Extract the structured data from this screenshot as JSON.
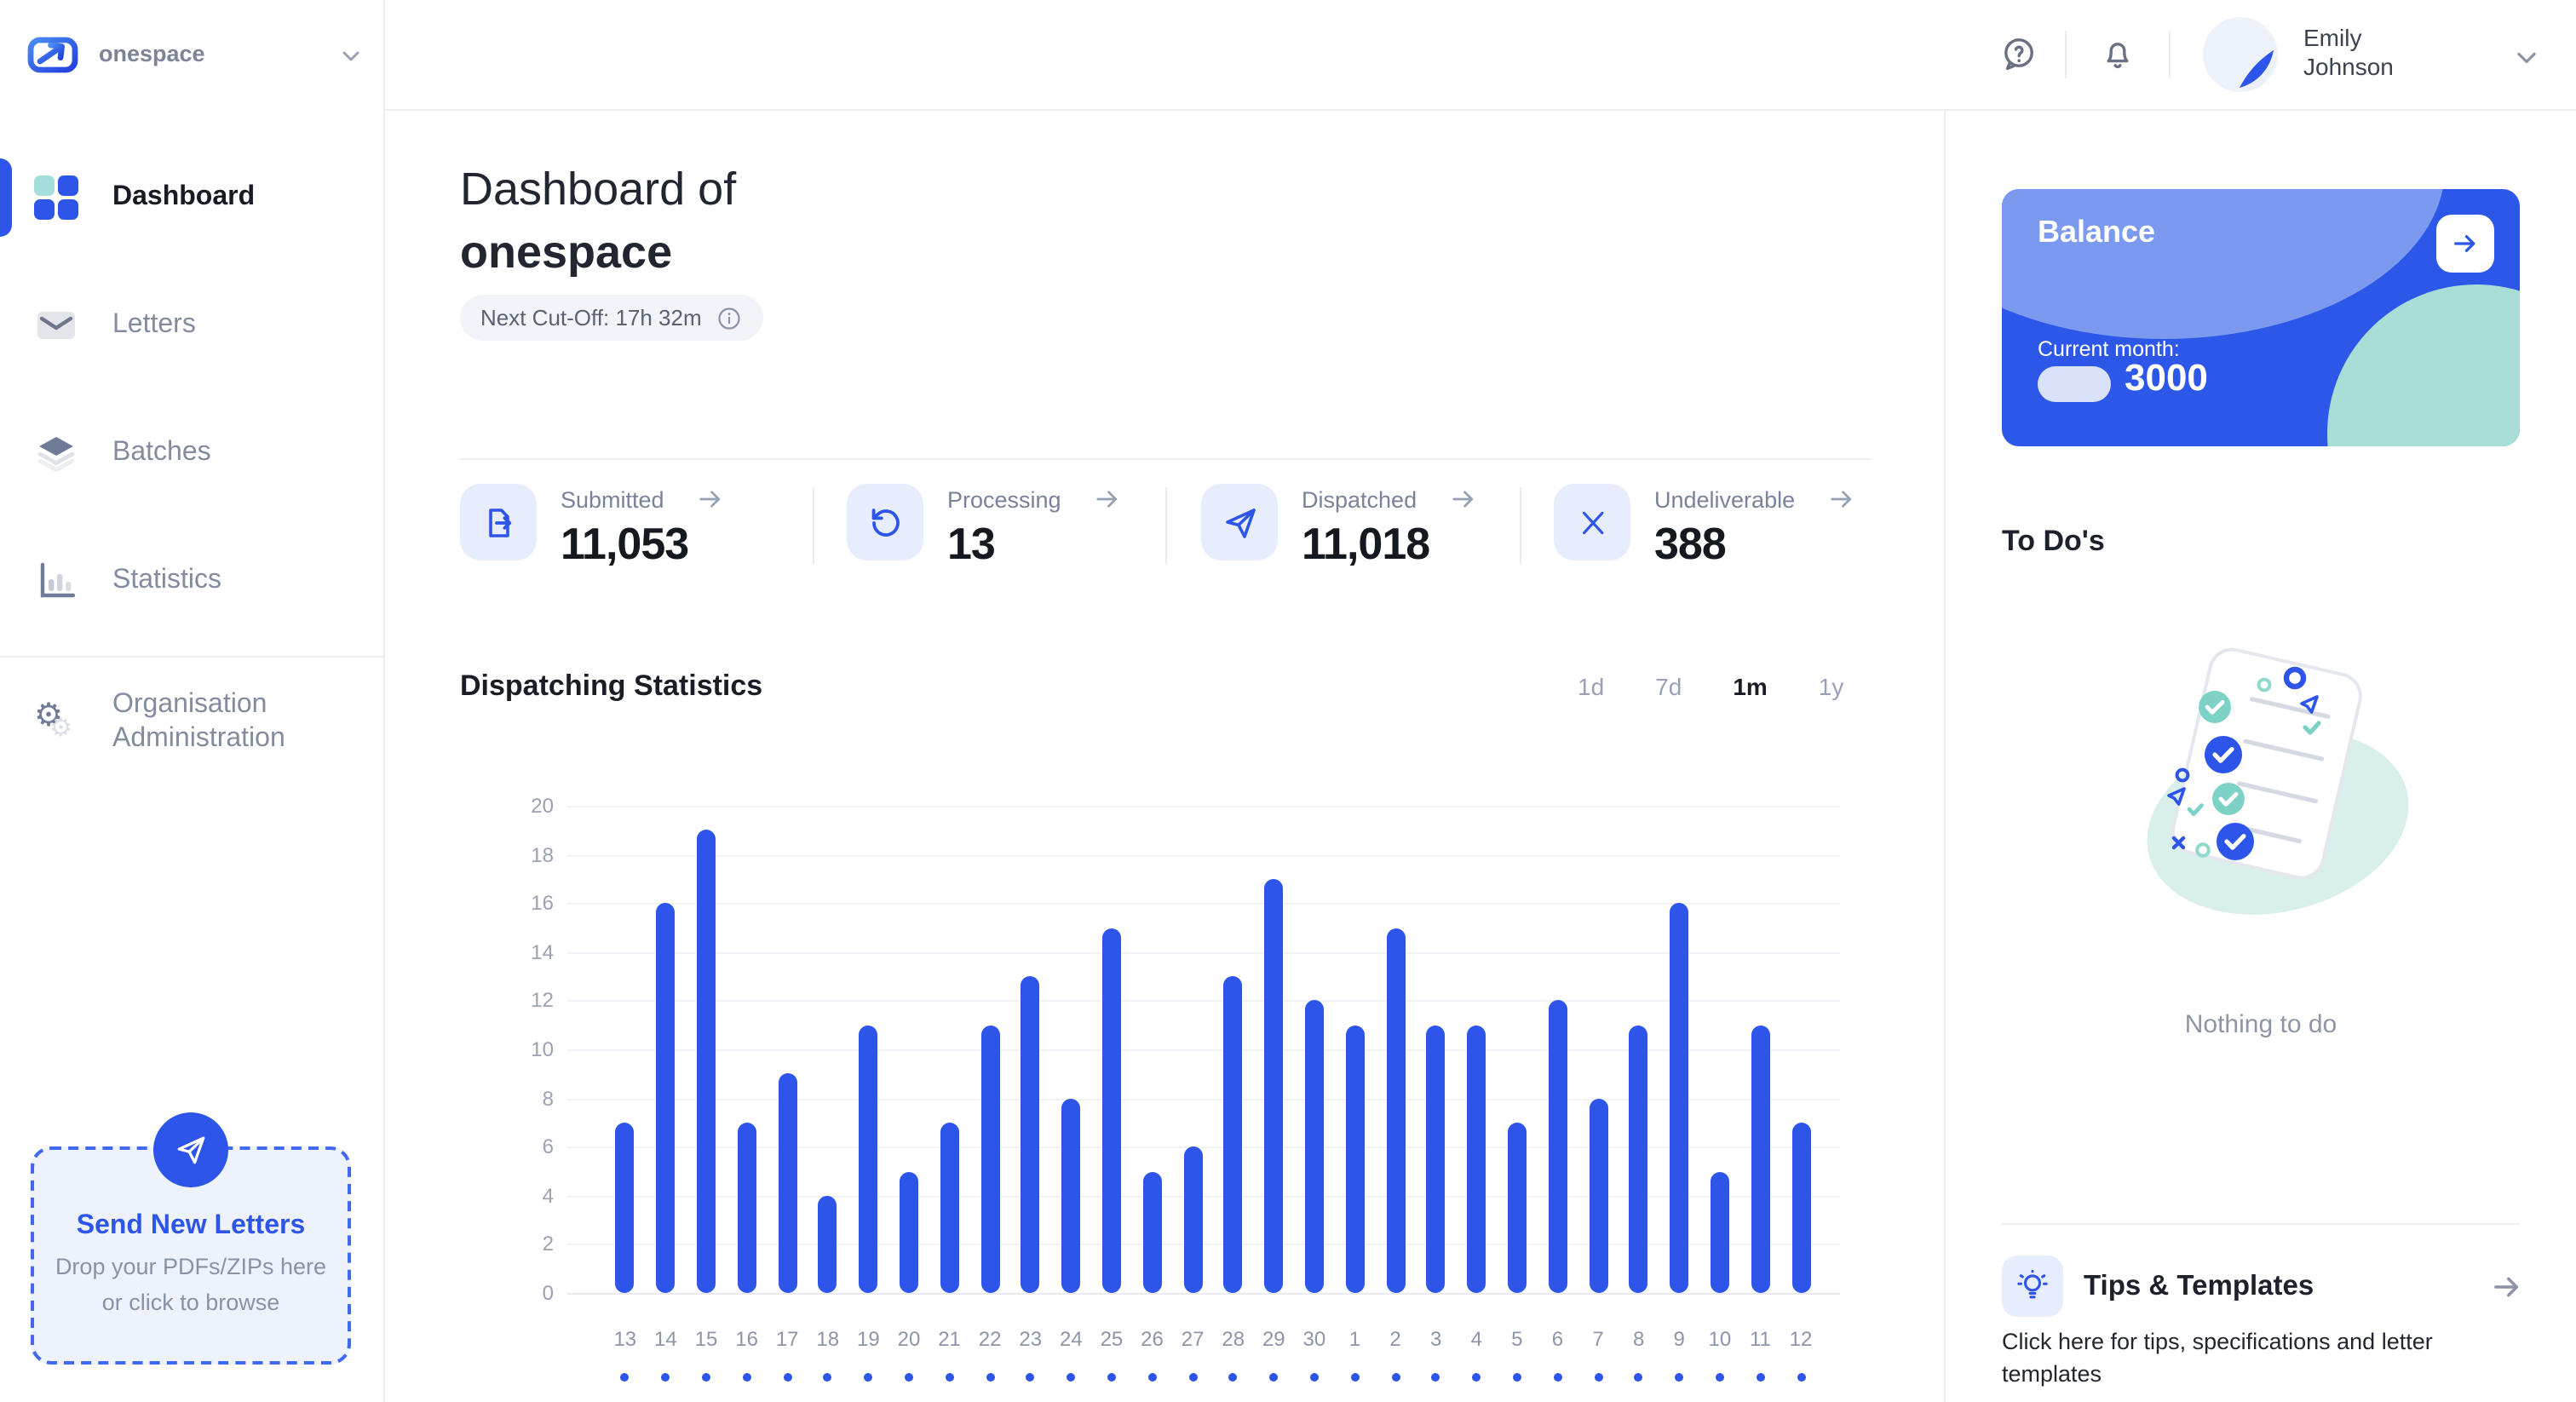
{
  "brand": {
    "name": "onespace"
  },
  "header": {
    "user_name": "Emily Johnson"
  },
  "sidebar": {
    "items": [
      {
        "label": "Dashboard",
        "active": true
      },
      {
        "label": "Letters"
      },
      {
        "label": "Batches"
      },
      {
        "label": "Statistics"
      },
      {
        "label": "Organisation Administration"
      }
    ],
    "dropzone": {
      "title": "Send New Letters",
      "subtitle": "Drop your PDFs/ZIPs here or click to browse"
    }
  },
  "main": {
    "title_prefix": "Dashboard of",
    "title_org": "onespace",
    "cutoff_badge": "Next Cut-Off: 17h 32m",
    "stats": [
      {
        "label": "Submitted",
        "value": "11,053",
        "icon": "file-export-icon"
      },
      {
        "label": "Processing",
        "value": "13",
        "icon": "refresh-icon"
      },
      {
        "label": "Dispatched",
        "value": "11,018",
        "icon": "paper-plane-icon"
      },
      {
        "label": "Undeliverable",
        "value": "388",
        "icon": "x-icon"
      }
    ],
    "chart_title": "Dispatching Statistics",
    "ranges": [
      {
        "label": "1d"
      },
      {
        "label": "7d"
      },
      {
        "label": "1m",
        "active": true
      },
      {
        "label": "1y"
      }
    ]
  },
  "right": {
    "balance": {
      "title": "Balance",
      "current_month_label": "Current month:",
      "amount": "3000"
    },
    "todos": {
      "title": "To Do's",
      "empty_text": "Nothing to do"
    },
    "tips": {
      "title": "Tips & Templates",
      "subtitle": "Click here for tips, specifications and letter templates"
    }
  },
  "icons": {
    "gear": "⚙"
  },
  "colors": {
    "primary": "#2e55e9",
    "teal_accent": "#a3dedc",
    "card_blue": "#2d57e9",
    "light_icon_bg": "#e7edfc",
    "bar_color": "#2e55e9"
  },
  "chart_data": {
    "type": "bar",
    "title": "Dispatching Statistics",
    "categories": [
      "13",
      "14",
      "15",
      "16",
      "17",
      "18",
      "19",
      "20",
      "21",
      "22",
      "23",
      "24",
      "25",
      "26",
      "27",
      "28",
      "29",
      "30",
      "1",
      "2",
      "3",
      "4",
      "5",
      "6",
      "7",
      "8",
      "9",
      "10",
      "11",
      "12"
    ],
    "values": [
      7,
      16,
      19,
      7,
      9,
      4,
      11,
      5,
      7,
      11,
      13,
      8,
      15,
      5,
      6,
      13,
      17,
      12,
      11,
      15,
      11,
      11,
      7,
      12,
      8,
      11,
      16,
      5,
      11,
      7
    ],
    "xlabel": "",
    "ylabel": "",
    "ylim": [
      0,
      20
    ],
    "yticks": [
      0,
      2,
      4,
      6,
      8,
      10,
      12,
      14,
      16,
      18,
      20
    ],
    "grid": true,
    "legend": false,
    "bar_color": "#2e55e9",
    "active_range": "1m"
  }
}
